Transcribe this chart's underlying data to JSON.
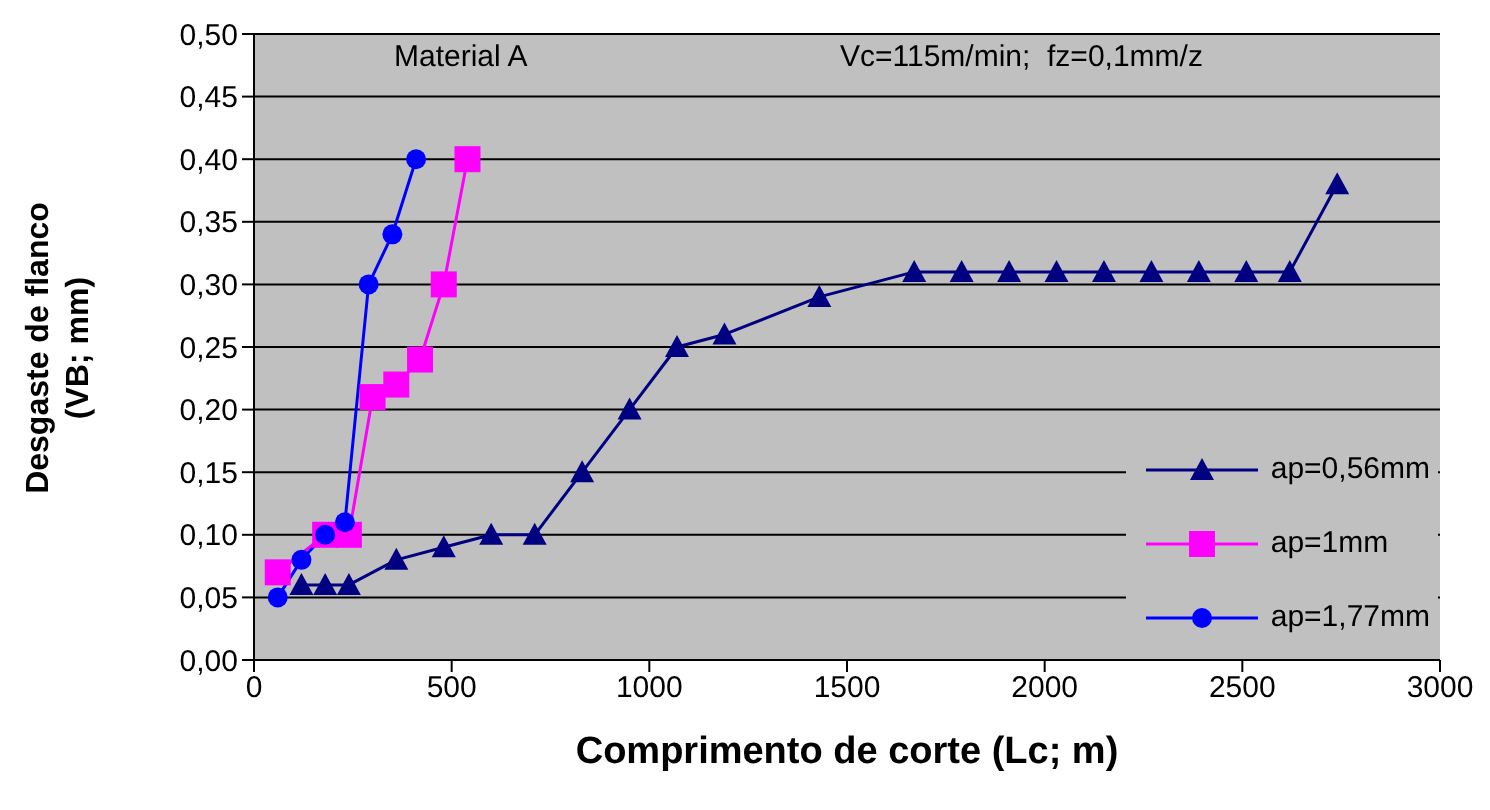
{
  "chart_data": {
    "type": "line",
    "xlabel": "Comprimento de corte (Lc; m)",
    "ylabel": "Desgaste de flanco (VB; mm)",
    "annotations": [
      "Material A",
      "Vc=115m/min;  fz=0,1mm/z"
    ],
    "xlim": [
      0,
      3000
    ],
    "xticks": [
      0,
      500,
      1000,
      1500,
      2000,
      2500,
      3000
    ],
    "ylim": [
      0,
      0.5
    ],
    "yticks": [
      {
        "value": 0,
        "label": "0,00"
      },
      {
        "value": 0.05,
        "label": "0,05"
      },
      {
        "value": 0.1,
        "label": "0,10"
      },
      {
        "value": 0.15,
        "label": "0,15"
      },
      {
        "value": 0.2,
        "label": "0,20"
      },
      {
        "value": 0.25,
        "label": "0,25"
      },
      {
        "value": 0.3,
        "label": "0,30"
      },
      {
        "value": 0.35,
        "label": "0,35"
      },
      {
        "value": 0.4,
        "label": "0,40"
      },
      {
        "value": 0.45,
        "label": "0,45"
      },
      {
        "value": 0.5,
        "label": "0,50"
      }
    ],
    "grid": "y",
    "legend": "bottom right",
    "line_style": "solid",
    "series": [
      {
        "name": "ap=0,56mm",
        "color": "#000080",
        "marker": "triangle",
        "x": [
          120,
          180,
          240,
          360,
          480,
          600,
          710,
          830,
          950,
          1070,
          1190,
          1430,
          1670,
          1790,
          1910,
          2030,
          2150,
          2270,
          2390,
          2510,
          2620,
          2740
        ],
        "values": [
          0.06,
          0.06,
          0.06,
          0.08,
          0.09,
          0.1,
          0.1,
          0.15,
          0.2,
          0.25,
          0.26,
          0.29,
          0.31,
          0.31,
          0.31,
          0.31,
          0.31,
          0.31,
          0.31,
          0.31,
          0.31,
          0.38
        ]
      },
      {
        "name": "ap=1mm",
        "color": "#ff00ff",
        "marker": "square",
        "x": [
          60,
          180,
          240,
          300,
          360,
          420,
          480,
          540
        ],
        "values": [
          0.07,
          0.1,
          0.1,
          0.21,
          0.22,
          0.24,
          0.3,
          0.4
        ]
      },
      {
        "name": "ap=1,77mm",
        "color": "#0000ff",
        "marker": "circle",
        "x": [
          60,
          120,
          180,
          230,
          290,
          350,
          410
        ],
        "values": [
          0.05,
          0.08,
          0.1,
          0.11,
          0.3,
          0.34,
          0.4
        ]
      }
    ]
  }
}
